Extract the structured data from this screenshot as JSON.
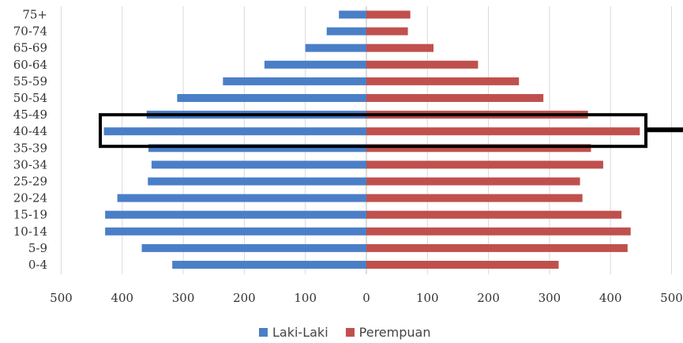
{
  "chart_data": {
    "type": "bar",
    "orientation": "horizontal",
    "title": "",
    "xlabel": "",
    "ylabel": "",
    "categories": [
      "75+",
      "70-74",
      "65-69",
      "60-64",
      "55-59",
      "50-54",
      "45-49",
      "40-44",
      "35-39",
      "30-34",
      "25-29",
      "20-24",
      "15-19",
      "10-14",
      "5-9",
      "0-4"
    ],
    "series": [
      {
        "name": "Laki-Laki",
        "color": "#4a7fc8",
        "direction": "left",
        "values": [
          45,
          65,
          100,
          167,
          235,
          310,
          360,
          430,
          357,
          352,
          358,
          408,
          428,
          428,
          368,
          318
        ]
      },
      {
        "name": "Perempuan",
        "color": "#c0504d",
        "direction": "right",
        "values": [
          72,
          68,
          110,
          183,
          250,
          290,
          363,
          448,
          368,
          388,
          350,
          354,
          418,
          433,
          428,
          315
        ]
      }
    ],
    "xticks": [
      "500",
      "400",
      "300",
      "200",
      "100",
      "0",
      "100",
      "200",
      "300",
      "400",
      "500"
    ],
    "xlim": [
      -500,
      500
    ],
    "grid": true,
    "legend_position": "bottom",
    "highlight": {
      "category": "40-44",
      "style": "black rectangle outline with pointer line to the right"
    }
  }
}
